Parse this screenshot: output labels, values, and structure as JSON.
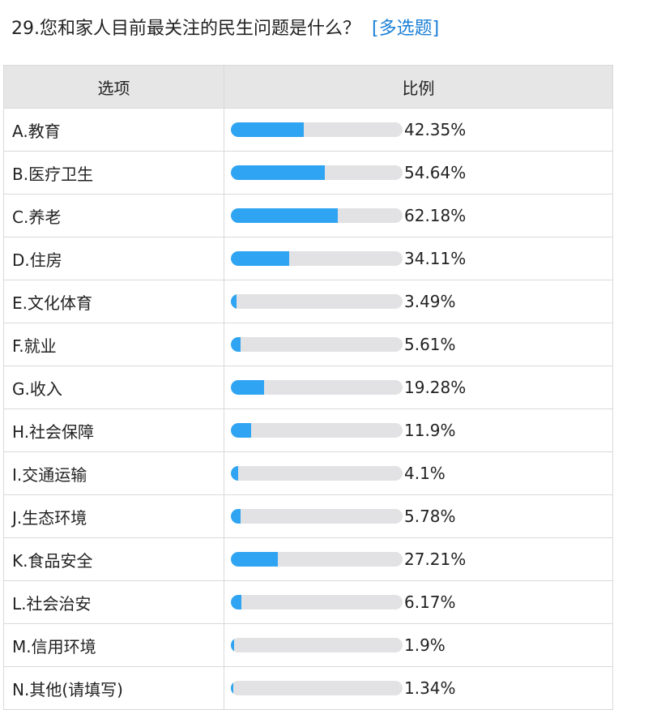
{
  "question": {
    "title": "29.您和家人目前最关注的民生问题是什么？",
    "type_tag": "[多选题]"
  },
  "table": {
    "headers": {
      "option": "选项",
      "ratio": "比例"
    },
    "rows": [
      {
        "option": "A.教育",
        "percent": 42.35,
        "label": "42.35%"
      },
      {
        "option": "B.医疗卫生",
        "percent": 54.64,
        "label": "54.64%"
      },
      {
        "option": "C.养老",
        "percent": 62.18,
        "label": "62.18%"
      },
      {
        "option": "D.住房",
        "percent": 34.11,
        "label": "34.11%"
      },
      {
        "option": "E.文化体育",
        "percent": 3.49,
        "label": "3.49%"
      },
      {
        "option": "F.就业",
        "percent": 5.61,
        "label": "5.61%"
      },
      {
        "option": "G.收入",
        "percent": 19.28,
        "label": "19.28%"
      },
      {
        "option": "H.社会保障",
        "percent": 11.9,
        "label": "11.9%"
      },
      {
        "option": "I.交通运输",
        "percent": 4.1,
        "label": "4.1%"
      },
      {
        "option": "J.生态环境",
        "percent": 5.78,
        "label": "5.78%"
      },
      {
        "option": "K.食品安全",
        "percent": 27.21,
        "label": "27.21%"
      },
      {
        "option": "L.社会治安",
        "percent": 6.17,
        "label": "6.17%"
      },
      {
        "option": "M.信用环境",
        "percent": 1.9,
        "label": "1.9%"
      },
      {
        "option": "N.其他(请填写)",
        "percent": 1.34,
        "label": "1.34%"
      }
    ]
  },
  "colors": {
    "bar_fill": "#2fa4f2",
    "bar_track": "#e2e2e4",
    "header_bg": "#e6e6e6",
    "tag": "#1a7fd6"
  }
}
